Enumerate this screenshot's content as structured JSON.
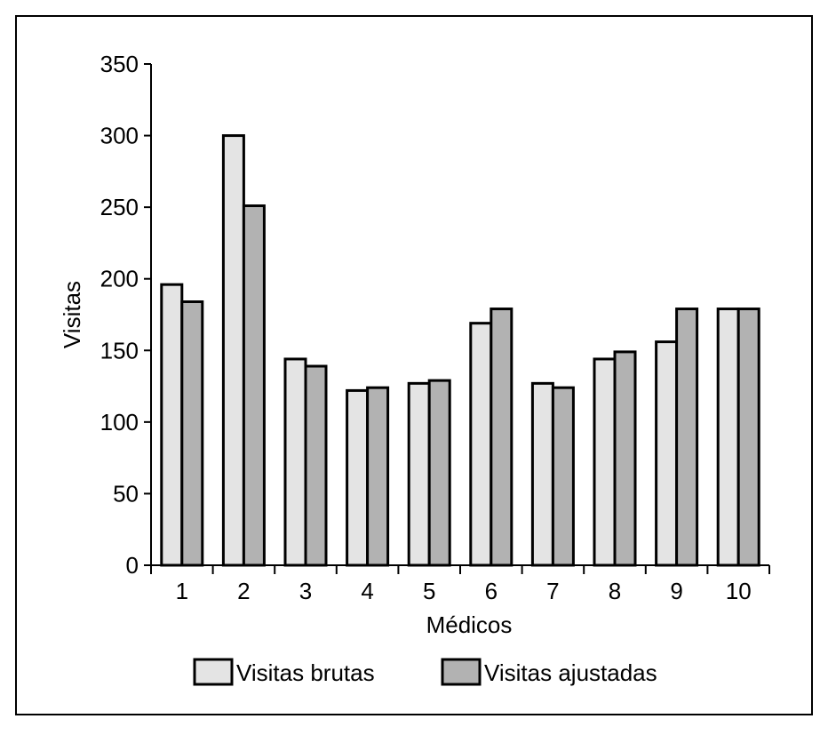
{
  "chart_data": {
    "type": "bar",
    "title": "",
    "xlabel": "Médicos",
    "ylabel": "Visitas",
    "ylim": [
      0,
      350
    ],
    "yticks": [
      0,
      50,
      100,
      150,
      200,
      250,
      300,
      350
    ],
    "categories": [
      "1",
      "2",
      "3",
      "4",
      "5",
      "6",
      "7",
      "8",
      "9",
      "10"
    ],
    "grid": false,
    "legend_position": "bottom",
    "series": [
      {
        "name": "Visitas brutas",
        "color": "#e4e4e4",
        "values": [
          196,
          300,
          144,
          122,
          127,
          169,
          127,
          144,
          156,
          179
        ]
      },
      {
        "name": "Visitas ajustadas",
        "color": "#b2b2b2",
        "values": [
          184,
          251,
          139,
          124,
          129,
          179,
          124,
          149,
          179,
          179
        ]
      }
    ]
  }
}
